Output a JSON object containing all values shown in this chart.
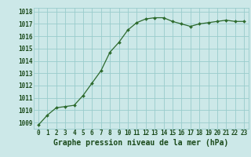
{
  "x": [
    0,
    1,
    2,
    3,
    4,
    5,
    6,
    7,
    8,
    9,
    10,
    11,
    12,
    13,
    14,
    15,
    16,
    17,
    18,
    19,
    20,
    21,
    22,
    23
  ],
  "y": [
    1008.8,
    1009.6,
    1010.2,
    1010.3,
    1010.4,
    1011.2,
    1012.2,
    1013.2,
    1014.7,
    1015.5,
    1016.5,
    1017.1,
    1017.4,
    1017.5,
    1017.5,
    1017.2,
    1017.0,
    1016.8,
    1017.0,
    1017.1,
    1017.2,
    1017.3,
    1017.2,
    1017.2
  ],
  "ylim_min": 1008.5,
  "ylim_max": 1018.3,
  "yticks": [
    1009,
    1010,
    1011,
    1012,
    1013,
    1014,
    1015,
    1016,
    1017,
    1018
  ],
  "xticks": [
    0,
    1,
    2,
    3,
    4,
    5,
    6,
    7,
    8,
    9,
    10,
    11,
    12,
    13,
    14,
    15,
    16,
    17,
    18,
    19,
    20,
    21,
    22,
    23
  ],
  "xlabel": "Graphe pression niveau de la mer (hPa)",
  "line_color": "#2d6a2d",
  "marker": "D",
  "marker_size": 2.0,
  "bg_color": "#cce8e8",
  "grid_color": "#99cccc",
  "text_color": "#1a4a1a",
  "tick_fontsize": 5.5,
  "xlabel_fontsize": 7.0
}
